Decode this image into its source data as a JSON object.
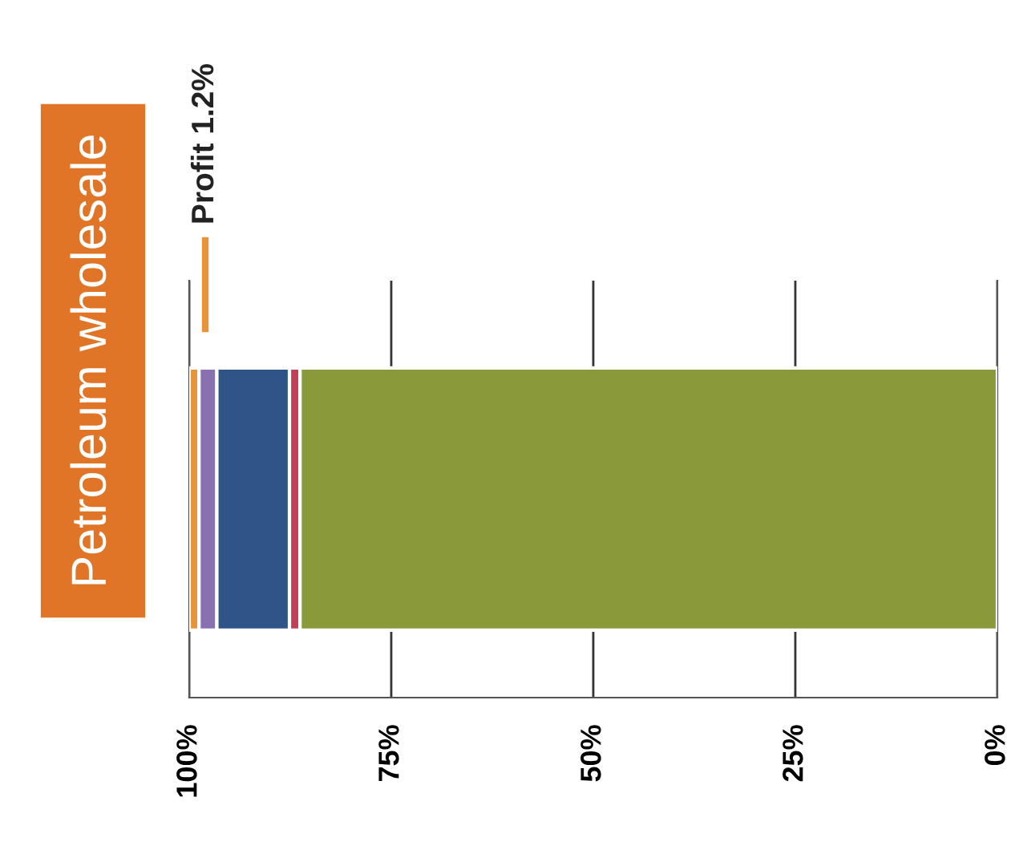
{
  "chart_data": {
    "type": "bar",
    "orientation": "horizontal",
    "stacked": true,
    "title": "Petroleum wholesale",
    "categories": [
      null
    ],
    "series": [
      {
        "color": "#8a9a3a",
        "values": [
          86.3
        ]
      },
      {
        "color": "#c0405a",
        "values": [
          1.3
        ]
      },
      {
        "color": "#2f5588",
        "values": [
          9.0
        ]
      },
      {
        "color": "#8a70b0",
        "values": [
          2.2
        ]
      },
      {
        "name": "Profit 1.2%",
        "color": "#e8943a",
        "values": [
          1.2
        ]
      }
    ],
    "xlim": [
      100,
      0
    ],
    "xticks": [
      {
        "value": 100,
        "label": "100%"
      },
      {
        "value": 75,
        "label": "75%"
      },
      {
        "value": 50,
        "label": "50%"
      },
      {
        "value": 25,
        "label": "25%"
      },
      {
        "value": 0,
        "label": "0%"
      }
    ],
    "grid": "x",
    "legend": "top"
  }
}
